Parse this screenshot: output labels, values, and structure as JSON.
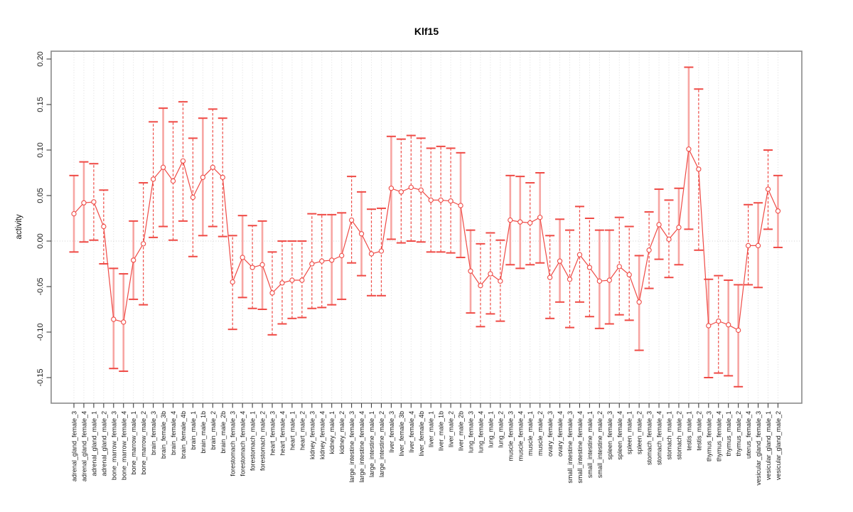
{
  "window": {
    "background": "#ffffff"
  },
  "chart_data": {
    "type": "line",
    "subtype": "errorbar-line",
    "title": "Klf15",
    "ylabel": "activity",
    "xlabel": "",
    "ylim": [
      -0.178,
      0.209
    ],
    "grid": {
      "vertical_per_category": true,
      "horizontal_at_zero": true,
      "style": "dotted"
    },
    "legend": "none",
    "yticks": {
      "values": [
        -0.15,
        -0.1,
        -0.05,
        0.0,
        0.05,
        0.1,
        0.15,
        0.2
      ],
      "labels": [
        "-0.15",
        "-0.10",
        "-0.05",
        "0.00",
        "0.05",
        "0.10",
        "0.15",
        "0.20"
      ]
    },
    "categories": [
      "adrenal_gland_female_3",
      "adrenal_gland_female_4",
      "adrenal_gland_male_1",
      "adrenal_gland_male_2",
      "bone_marrow_female_3",
      "bone_marrow_female_4",
      "bone_marrow_male_1",
      "bone_marrow_male_2",
      "brain_female_3",
      "brain_female_3b",
      "brain_female_4",
      "brain_female_4b",
      "brain_male_1",
      "brain_male_1b",
      "brain_male_2",
      "brain_male_2b",
      "forestomach_female_3",
      "forestomach_female_4",
      "forestomach_male_1",
      "forestomach_male_2",
      "heart_female_3",
      "heart_female_4",
      "heart_male_1",
      "heart_male_2",
      "kidney_female_3",
      "kidney_female_4",
      "kidney_male_1",
      "kidney_male_2",
      "large_intestine_female_3",
      "large_intestine_female_4",
      "large_intestine_male_1",
      "large_intestine_male_2",
      "liver_female_3",
      "liver_female_3b",
      "liver_female_4",
      "liver_female_4b",
      "liver_male_1",
      "liver_male_1b",
      "liver_male_2",
      "liver_male_2b",
      "lung_female_3",
      "lung_female_4",
      "lung_male_1",
      "lung_male_2",
      "muscle_female_3",
      "muscle_female_4",
      "muscle_male_1",
      "muscle_male_2",
      "ovary_female_3",
      "ovary_female_4",
      "small_intestine_female_3",
      "small_intestine_female_4",
      "small_intestine_male_1",
      "small_intestine_male_2",
      "spleen_female_3",
      "spleen_female_4",
      "spleen_male_1",
      "spleen_male_2",
      "stomach_female_3",
      "stomach_female_4",
      "stomach_male_1",
      "stomach_male_2",
      "testis_male_1",
      "testis_male_2",
      "thymus_female_3",
      "thymus_female_4",
      "thymus_male_1",
      "thymus_male_2",
      "uterus_female_4",
      "vesicular_gland_female_3",
      "vesicular_gland_male_1",
      "vesicular_gland_male_2"
    ],
    "series": [
      {
        "name": "activity",
        "means": [
          0.03,
          0.042,
          0.043,
          0.016,
          -0.086,
          -0.089,
          -0.021,
          -0.003,
          0.068,
          0.081,
          0.066,
          0.088,
          0.048,
          0.07,
          0.081,
          0.07,
          -0.045,
          -0.018,
          -0.029,
          -0.026,
          -0.057,
          -0.046,
          -0.043,
          -0.043,
          -0.025,
          -0.022,
          -0.021,
          -0.016,
          0.023,
          0.008,
          -0.014,
          -0.011,
          0.058,
          0.054,
          0.059,
          0.056,
          0.045,
          0.045,
          0.044,
          0.039,
          -0.033,
          -0.049,
          -0.036,
          -0.044,
          0.023,
          0.021,
          0.02,
          0.026,
          -0.04,
          -0.022,
          -0.042,
          -0.015,
          -0.029,
          -0.044,
          -0.043,
          -0.028,
          -0.037,
          -0.067,
          -0.01,
          0.018,
          0.002,
          0.015,
          0.101,
          0.079,
          -0.093,
          -0.088,
          -0.092,
          -0.098,
          -0.005,
          -0.005,
          0.057,
          0.033
        ],
        "err_low": [
          -0.012,
          -0.001,
          0.001,
          -0.025,
          -0.14,
          -0.143,
          -0.064,
          -0.07,
          0.004,
          0.016,
          0.001,
          0.022,
          -0.017,
          0.006,
          0.016,
          0.005,
          -0.097,
          -0.062,
          -0.074,
          -0.075,
          -0.103,
          -0.091,
          -0.085,
          -0.084,
          -0.074,
          -0.073,
          -0.07,
          -0.064,
          -0.024,
          -0.038,
          -0.06,
          -0.06,
          0.002,
          -0.002,
          0.0,
          -0.001,
          -0.012,
          -0.012,
          -0.013,
          -0.018,
          -0.079,
          -0.094,
          -0.08,
          -0.088,
          -0.026,
          -0.03,
          -0.026,
          -0.024,
          -0.085,
          -0.067,
          -0.095,
          -0.067,
          -0.083,
          -0.096,
          -0.091,
          -0.081,
          -0.087,
          -0.12,
          -0.052,
          -0.02,
          -0.04,
          -0.026,
          0.013,
          -0.01,
          -0.15,
          -0.145,
          -0.148,
          -0.16,
          -0.048,
          -0.051,
          0.013,
          -0.007
        ],
        "err_high": [
          0.072,
          0.087,
          0.085,
          0.056,
          -0.03,
          -0.036,
          0.022,
          0.064,
          0.131,
          0.146,
          0.131,
          0.153,
          0.113,
          0.135,
          0.145,
          0.135,
          0.006,
          0.028,
          0.017,
          0.022,
          -0.012,
          0.0,
          0.0,
          0.0,
          0.03,
          0.029,
          0.029,
          0.031,
          0.071,
          0.054,
          0.035,
          0.036,
          0.115,
          0.112,
          0.116,
          0.113,
          0.102,
          0.104,
          0.102,
          0.097,
          0.012,
          -0.003,
          0.009,
          0.001,
          0.072,
          0.071,
          0.064,
          0.075,
          0.006,
          0.024,
          0.012,
          0.038,
          0.025,
          0.012,
          0.012,
          0.026,
          0.016,
          -0.016,
          0.032,
          0.057,
          0.045,
          0.058,
          0.191,
          0.167,
          -0.042,
          -0.038,
          -0.043,
          -0.048,
          0.04,
          0.042,
          0.1,
          0.072
        ],
        "stem_style": [
          "s",
          "s",
          "d",
          "d",
          "s",
          "s",
          "s",
          "d",
          "d",
          "s",
          "d",
          "d",
          "d",
          "s",
          "d",
          "d",
          "d",
          "s",
          "d",
          "s",
          "d",
          "d",
          "d",
          "d",
          "d",
          "d",
          "s",
          "s",
          "d",
          "s",
          "d",
          "d",
          "s",
          "d",
          "d",
          "d",
          "d",
          "d",
          "d",
          "s",
          "s",
          "d",
          "d",
          "d",
          "s",
          "s",
          "d",
          "s",
          "d",
          "s",
          "d",
          "d",
          "d",
          "s",
          "s",
          "d",
          "d",
          "s",
          "d",
          "s",
          "d",
          "s",
          "s",
          "d",
          "s",
          "d",
          "s",
          "s",
          "d",
          "s",
          "d",
          "s"
        ]
      }
    ],
    "colors": {
      "line": "#ef4a45",
      "cap": "#ef4a45",
      "stem_solid": "#f7a6a3",
      "stem_dashed": "#ef4a45",
      "point_stroke": "#ef4a45",
      "point_fill": "#ffffff",
      "box": "#8a8a8a",
      "tick": "#404040",
      "grid": "#d8d8d8",
      "zero_line": "#cfcfcf",
      "text": "#1a1a1a"
    }
  }
}
